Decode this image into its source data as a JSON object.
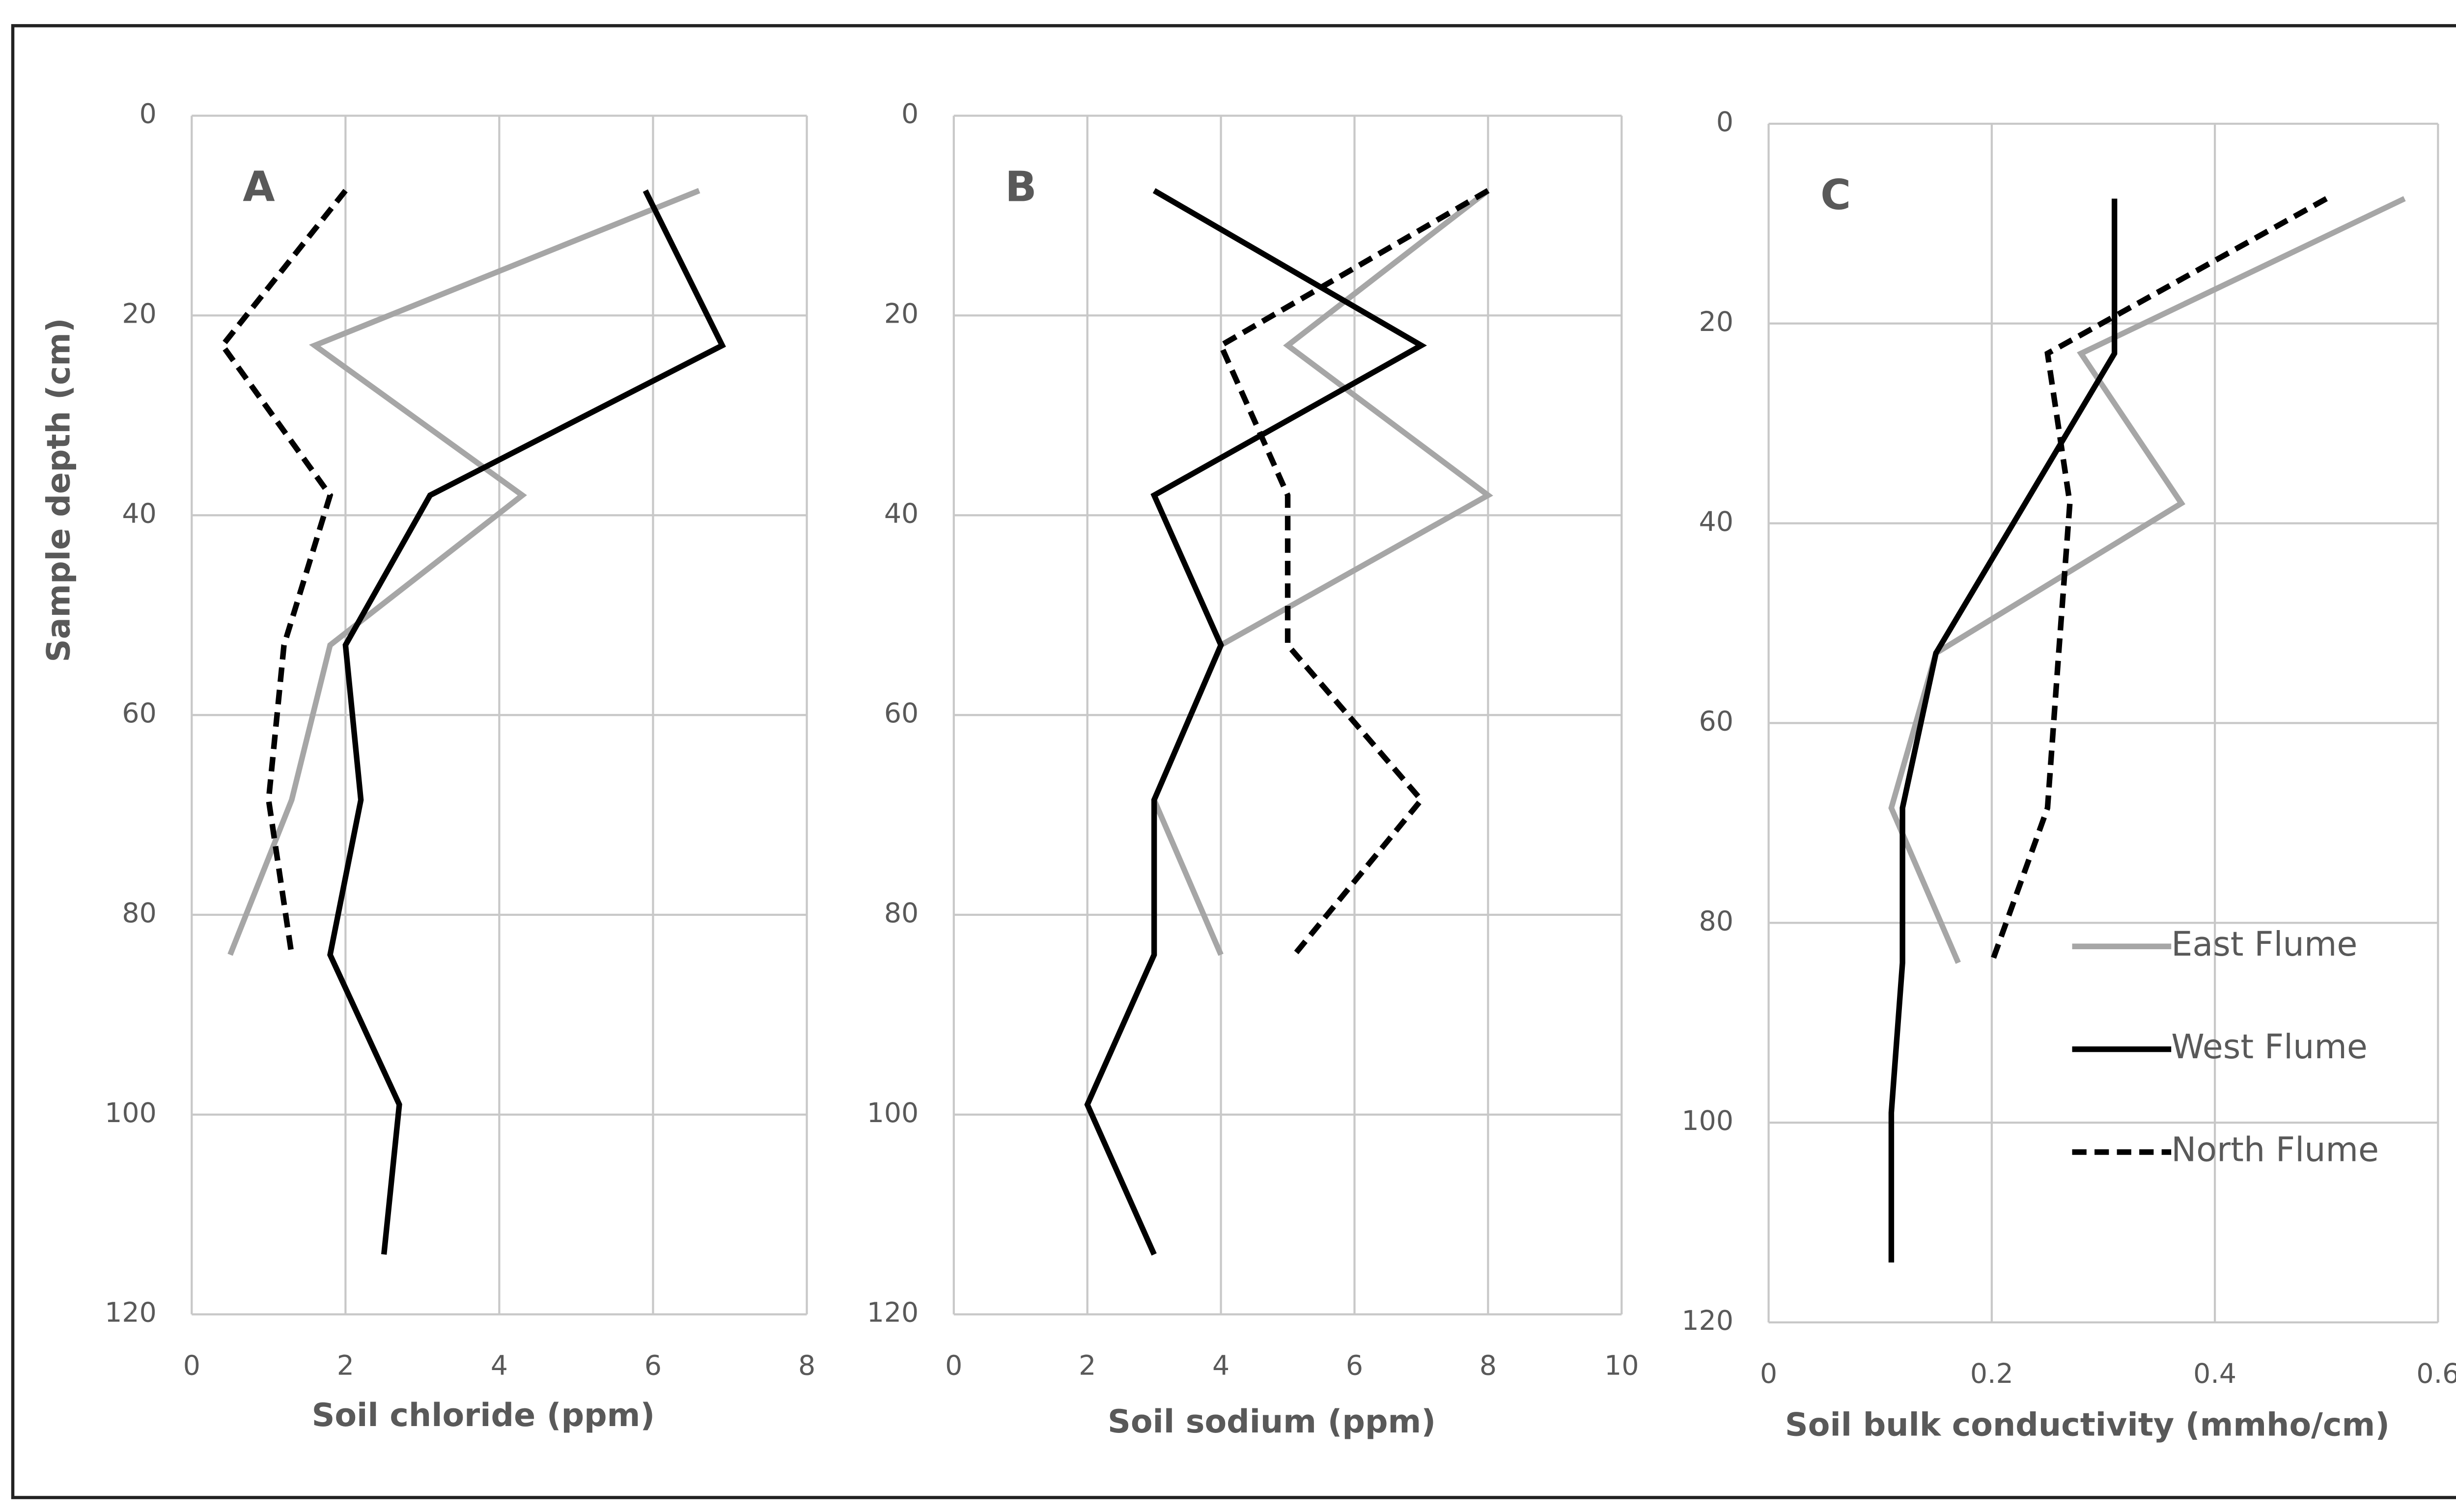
{
  "chart_data": [
    {
      "type": "line",
      "panel": "A",
      "x_label": "Soil chloride (ppm)",
      "y_label": "Sample depth  (cm)",
      "xlim": [
        0,
        8
      ],
      "xticks": [
        0,
        2,
        4,
        6,
        8
      ],
      "ylim": [
        0,
        120
      ],
      "yticks": [
        0,
        20,
        40,
        60,
        80,
        100,
        120
      ],
      "y_inverted": true,
      "grid": true,
      "series": [
        {
          "name": "East Flume",
          "color": "#a6a6a6",
          "line_style": "solid",
          "depths": [
            7.5,
            23,
            38,
            53,
            68.5,
            84
          ],
          "values": [
            6.6,
            1.6,
            4.3,
            1.8,
            1.3,
            0.5
          ]
        },
        {
          "name": "West Flume",
          "color": "#000000",
          "line_style": "solid",
          "depths": [
            7.5,
            23,
            38,
            53,
            68.5,
            84,
            99,
            114
          ],
          "values": [
            5.9,
            6.9,
            3.1,
            2.0,
            2.2,
            1.8,
            2.7,
            2.5
          ]
        },
        {
          "name": "North Flume",
          "color": "#000000",
          "line_style": "dashed",
          "depths": [
            7.5,
            23,
            38,
            53,
            68.5,
            84
          ],
          "values": [
            2.0,
            0.4,
            1.8,
            1.2,
            1.0,
            1.3
          ]
        }
      ]
    },
    {
      "type": "line",
      "panel": "B",
      "x_label": "Soil sodium (ppm)",
      "xlim": [
        0,
        10
      ],
      "xticks": [
        0,
        2,
        4,
        6,
        8,
        10
      ],
      "ylim": [
        0,
        120
      ],
      "yticks": [
        0,
        20,
        40,
        60,
        80,
        100,
        120
      ],
      "y_inverted": true,
      "grid": true,
      "series": [
        {
          "name": "East Flume",
          "color": "#a6a6a6",
          "line_style": "solid",
          "depths": [
            7.5,
            23,
            38,
            53,
            68.5,
            84
          ],
          "values": [
            8,
            5,
            8,
            4,
            3,
            4
          ]
        },
        {
          "name": "West Flume",
          "color": "#000000",
          "line_style": "solid",
          "depths": [
            7.5,
            23,
            38,
            53,
            68.5,
            84,
            99,
            114
          ],
          "values": [
            3,
            7,
            3,
            4,
            3,
            3,
            2,
            3
          ]
        },
        {
          "name": "North Flume",
          "color": "#000000",
          "line_style": "dashed",
          "depths": [
            7.5,
            23,
            38,
            53,
            68.5,
            84
          ],
          "values": [
            8,
            4,
            5,
            5,
            7,
            5.1
          ]
        }
      ]
    },
    {
      "type": "line",
      "panel": "C",
      "x_label": "Soil bulk conductivity (mmho/cm)",
      "xlim": [
        0,
        0.6
      ],
      "xticks": [
        0,
        0.2,
        0.4,
        0.6
      ],
      "ylim": [
        0,
        120
      ],
      "yticks": [
        0,
        20,
        40,
        60,
        80,
        100,
        120
      ],
      "y_inverted": true,
      "grid": true,
      "legend": "lower right",
      "series": [
        {
          "name": "East Flume",
          "color": "#a6a6a6",
          "line_style": "solid",
          "depths": [
            7.5,
            23,
            38,
            53,
            68.5,
            84
          ],
          "values": [
            0.57,
            0.28,
            0.37,
            0.15,
            0.11,
            0.17
          ]
        },
        {
          "name": "West Flume",
          "color": "#000000",
          "line_style": "solid",
          "depths": [
            7.5,
            23,
            38,
            53,
            68.5,
            84,
            99,
            114
          ],
          "values": [
            0.31,
            0.31,
            0.23,
            0.15,
            0.12,
            0.12,
            0.11,
            0.11
          ]
        },
        {
          "name": "North Flume",
          "color": "#000000",
          "line_style": "dashed",
          "depths": [
            7.5,
            23,
            38,
            53,
            68.5,
            84
          ],
          "values": [
            0.5,
            0.25,
            0.27,
            0.26,
            0.25,
            0.2
          ]
        }
      ]
    }
  ]
}
